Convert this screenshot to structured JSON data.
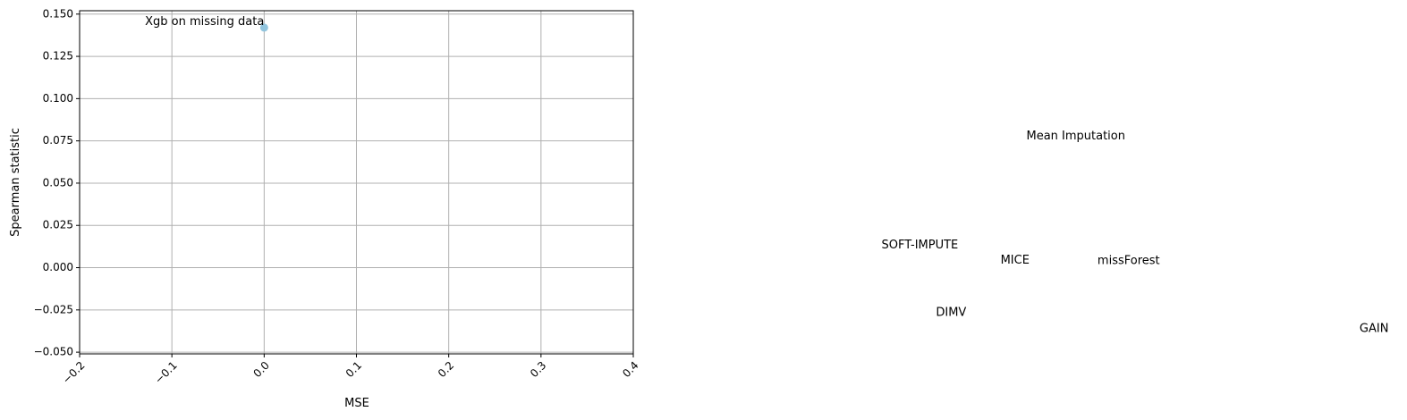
{
  "chart_data": {
    "type": "scatter",
    "title": "",
    "xlabel": "MSE",
    "ylabel": "Spearman statistic",
    "xlim": [
      -0.2,
      0.4
    ],
    "ylim": [
      -0.051,
      0.152
    ],
    "grid": true,
    "x_ticks": [
      -0.2,
      -0.1,
      0.0,
      0.1,
      0.2,
      0.3,
      0.4
    ],
    "x_tick_labels": [
      "−0.2",
      "−0.1",
      "0.0",
      "0.1",
      "0.2",
      "0.3",
      "0.4"
    ],
    "y_ticks": [
      -0.05,
      -0.025,
      0.0,
      0.025,
      0.05,
      0.075,
      0.1,
      0.125,
      0.15
    ],
    "y_tick_labels": [
      "−0.050",
      "−0.025",
      "0.000",
      "0.025",
      "0.050",
      "0.075",
      "0.100",
      "0.125",
      "0.150"
    ],
    "marker_color": "#92c5de",
    "points": [
      {
        "label": "Xgb on missing data",
        "x": 0.0,
        "y": 0.142
      }
    ],
    "annotations": [
      {
        "label": "Mean Imputation",
        "x": 0.826,
        "y": 0.076
      },
      {
        "label": "SOFT-IMPUTE",
        "x": 0.669,
        "y": 0.0115
      },
      {
        "label": "MICE",
        "x": 0.798,
        "y": 0.0025
      },
      {
        "label": "missForest",
        "x": 0.903,
        "y": 0.002
      },
      {
        "label": "DIMV",
        "x": 0.728,
        "y": -0.0285
      },
      {
        "label": "GAIN",
        "x": 1.187,
        "y": -0.038
      }
    ]
  }
}
